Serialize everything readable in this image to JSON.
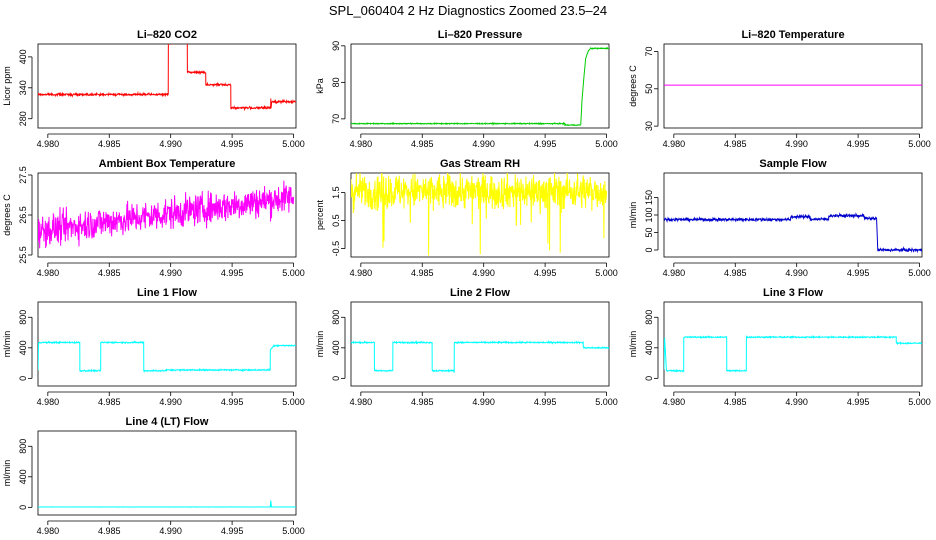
{
  "title": "SPL_060404  2 Hz Diagnostics Zoomed 23.5–24",
  "chart_data": [
    {
      "type": "line",
      "title": "Li–820 CO2",
      "ylabel": "Licor ppm",
      "color": "#ff0000",
      "xlim": [
        4.9792,
        5.0002
      ],
      "ylim": [
        262,
        425
      ],
      "xticks": [
        4.98,
        4.985,
        4.99,
        4.995,
        5.0
      ],
      "xtick_labels": [
        "4.980",
        "4.985",
        "4.990",
        "4.995",
        "5.000"
      ],
      "yticks": [
        280,
        340,
        400
      ],
      "ytick_labels": [
        "280",
        "340",
        "400"
      ],
      "noise": 1.5,
      "series": [
        {
          "x": [
            4.9792,
            4.9898,
            4.98981,
            4.99135,
            4.99136,
            4.99285,
            4.99286,
            4.99489,
            4.9949,
            4.99814,
            4.99815,
            4.99816,
            4.99822,
            5.0002
          ],
          "y": [
            327,
            327,
            428,
            428,
            370,
            370,
            346,
            346,
            301,
            301,
            320,
            301,
            313,
            313
          ]
        }
      ]
    },
    {
      "type": "line",
      "title": "Li–820 Pressure",
      "ylabel": "kPa",
      "color": "#00cc00",
      "xlim": [
        4.9792,
        5.0002
      ],
      "ylim": [
        67.5,
        90.5
      ],
      "xticks": [
        4.98,
        4.985,
        4.99,
        4.995,
        5.0
      ],
      "xtick_labels": [
        "4.980",
        "4.985",
        "4.990",
        "4.995",
        "5.000"
      ],
      "yticks": [
        70,
        80,
        90
      ],
      "ytick_labels": [
        "70",
        "80",
        "90"
      ],
      "noise": 0.1,
      "series": [
        {
          "x": [
            4.9792,
            4.9966,
            4.99661,
            4.9979,
            4.998,
            4.9982,
            4.9983,
            4.9985,
            4.9987,
            5.0002
          ],
          "y": [
            68.7,
            68.7,
            68.3,
            68.3,
            75,
            83,
            86.5,
            88.5,
            89.3,
            89.3
          ]
        }
      ]
    },
    {
      "type": "line",
      "title": "Li–820 Temperature",
      "ylabel": "degrees C",
      "color": "#ff00ff",
      "xlim": [
        4.9792,
        5.0002
      ],
      "ylim": [
        29,
        74
      ],
      "xticks": [
        4.98,
        4.985,
        4.99,
        4.995,
        5.0
      ],
      "xtick_labels": [
        "4.980",
        "4.985",
        "4.990",
        "4.995",
        "5.000"
      ],
      "yticks": [
        30,
        50,
        70
      ],
      "ytick_labels": [
        "30",
        "50",
        "70"
      ],
      "noise": 0,
      "series": [
        {
          "x": [
            4.9792,
            5.0002
          ],
          "y": [
            52,
            52
          ]
        }
      ]
    },
    {
      "type": "line",
      "title": "Ambient Box Temperature",
      "ylabel": "degrees C",
      "color": "#ff00ff",
      "xlim": [
        4.9792,
        5.0002
      ],
      "ylim": [
        25.45,
        27.55
      ],
      "xticks": [
        4.98,
        4.985,
        4.99,
        4.995,
        5.0
      ],
      "xtick_labels": [
        "4.980",
        "4.985",
        "4.990",
        "4.995",
        "5.000"
      ],
      "yticks": [
        25.5,
        26.5,
        27.5
      ],
      "ytick_labels": [
        "25.5",
        "26.5",
        "27.5"
      ],
      "noise": 0.28,
      "series": [
        {
          "x": [
            4.9792,
            5.0
          ],
          "y": [
            26.1,
            26.95
          ]
        }
      ]
    },
    {
      "type": "line",
      "title": "Gas Stream RH",
      "ylabel": "percent",
      "color": "#ffff00",
      "xlim": [
        4.9792,
        5.0002
      ],
      "ylim": [
        -0.8,
        2.2
      ],
      "xticks": [
        4.98,
        4.985,
        4.99,
        4.995,
        5.0
      ],
      "xtick_labels": [
        "4.980",
        "4.985",
        "4.990",
        "4.995",
        "5.000"
      ],
      "yticks": [
        -0.5,
        0.5,
        1.5
      ],
      "ytick_labels": [
        "-0.5",
        "0.5",
        "1.5"
      ],
      "noise": 0.45,
      "spikes": true,
      "series": [
        {
          "x": [
            4.9792,
            5.0
          ],
          "y": [
            1.55,
            1.55
          ]
        }
      ]
    },
    {
      "type": "line",
      "title": "Sample Flow",
      "ylabel": "ml/min",
      "color": "#0000cc",
      "xlim": [
        4.9792,
        5.0002
      ],
      "ylim": [
        -20,
        220
      ],
      "xticks": [
        4.98,
        4.985,
        4.99,
        4.995,
        5.0
      ],
      "xtick_labels": [
        "4.980",
        "4.985",
        "4.990",
        "4.995",
        "5.000"
      ],
      "yticks": [
        0,
        50,
        100,
        150
      ],
      "ytick_labels": [
        "0",
        "50",
        "100",
        "150"
      ],
      "noise": 3,
      "series": [
        {
          "x": [
            4.9792,
            4.9895,
            4.98951,
            4.9911,
            4.99111,
            4.9926,
            4.99261,
            4.9955,
            4.99551,
            4.9965,
            4.9966,
            5.0002
          ],
          "y": [
            87,
            87,
            95,
            95,
            88,
            88,
            98,
            98,
            90,
            90,
            0,
            0
          ]
        }
      ]
    },
    {
      "type": "line",
      "title": "Line 1 Flow",
      "ylabel": "ml/min",
      "color": "#00ffff",
      "xlim": [
        4.9792,
        5.0002
      ],
      "ylim": [
        -100,
        1000
      ],
      "xticks": [
        4.98,
        4.985,
        4.99,
        4.995,
        5.0
      ],
      "xtick_labels": [
        "4.980",
        "4.985",
        "4.990",
        "4.995",
        "5.000"
      ],
      "yticks": [
        0,
        400,
        800
      ],
      "ytick_labels": [
        "0",
        "400",
        "800"
      ],
      "noise": 6,
      "series": [
        {
          "x": [
            4.9792,
            4.97925,
            4.9826,
            4.98261,
            4.9843,
            4.98431,
            4.9878,
            4.98781,
            4.9896,
            4.98961,
            4.9981,
            4.99811,
            4.9984,
            5.0002
          ],
          "y": [
            100,
            470,
            470,
            100,
            100,
            470,
            470,
            100,
            100,
            110,
            110,
            370,
            430,
            430
          ]
        }
      ]
    },
    {
      "type": "line",
      "title": "Line 2 Flow",
      "ylabel": "ml/min",
      "color": "#00ffff",
      "xlim": [
        4.9792,
        5.0002
      ],
      "ylim": [
        -100,
        1000
      ],
      "xticks": [
        4.98,
        4.985,
        4.99,
        4.995,
        5.0
      ],
      "xtick_labels": [
        "4.980",
        "4.985",
        "4.990",
        "4.995",
        "5.000"
      ],
      "yticks": [
        0,
        400,
        800
      ],
      "ytick_labels": [
        "0",
        "400",
        "800"
      ],
      "noise": 6,
      "series": [
        {
          "x": [
            4.9792,
            4.9811,
            4.98111,
            4.9826,
            4.98261,
            4.9858,
            4.98581,
            4.9876,
            4.98761,
            4.9981,
            4.99811,
            5.0002
          ],
          "y": [
            470,
            470,
            100,
            100,
            470,
            470,
            100,
            100,
            470,
            470,
            400,
            400
          ]
        }
      ]
    },
    {
      "type": "line",
      "title": "Line 3 Flow",
      "ylabel": "ml/min",
      "color": "#00ffff",
      "xlim": [
        4.9792,
        5.0002
      ],
      "ylim": [
        -100,
        1000
      ],
      "xticks": [
        4.98,
        4.985,
        4.99,
        4.995,
        5.0
      ],
      "xtick_labels": [
        "4.980",
        "4.985",
        "4.990",
        "4.995",
        "5.000"
      ],
      "yticks": [
        0,
        400,
        800
      ],
      "ytick_labels": [
        "0",
        "400",
        "800"
      ],
      "noise": 6,
      "series": [
        {
          "x": [
            4.9792,
            4.97925,
            4.9794,
            4.9808,
            4.98081,
            4.9843,
            4.98431,
            4.9859,
            4.98591,
            4.9981,
            4.99811,
            5.0002
          ],
          "y": [
            120,
            530,
            100,
            100,
            540,
            540,
            100,
            100,
            540,
            540,
            460,
            460
          ]
        }
      ]
    },
    {
      "type": "line",
      "title": "Line 4 (LT) Flow",
      "ylabel": "ml/min",
      "color": "#00ffff",
      "xlim": [
        4.9792,
        5.0002
      ],
      "ylim": [
        -100,
        1000
      ],
      "xticks": [
        4.98,
        4.985,
        4.99,
        4.995,
        5.0
      ],
      "xtick_labels": [
        "4.980",
        "4.985",
        "4.990",
        "4.995",
        "5.000"
      ],
      "yticks": [
        0,
        400,
        800
      ],
      "ytick_labels": [
        "0",
        "400",
        "800"
      ],
      "noise": 1,
      "series": [
        {
          "x": [
            4.9792,
            4.9981,
            4.99815,
            4.9982,
            5.0002
          ],
          "y": [
            5,
            5,
            90,
            5,
            5
          ]
        }
      ]
    }
  ]
}
